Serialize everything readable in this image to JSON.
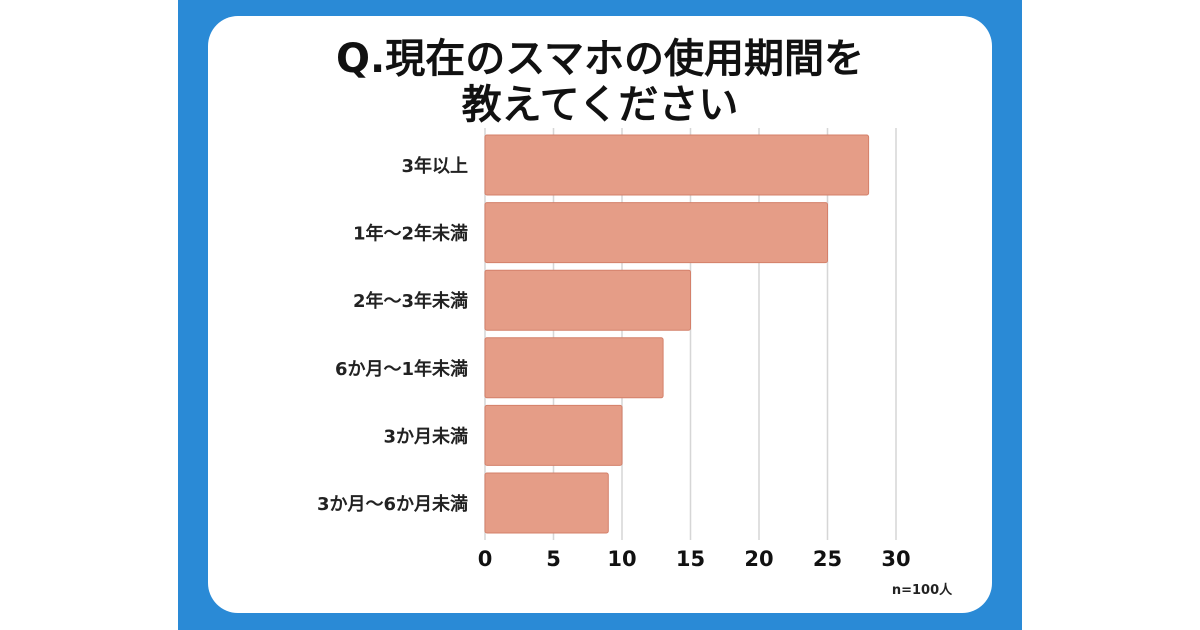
{
  "title": {
    "line1": "Q.現在のスマホの使用期間を",
    "line2": "教えてください"
  },
  "note": "n=100人",
  "colors": {
    "frame": "#2a8ad6",
    "bar": "#e59d87",
    "bar_stroke": "#d4806a",
    "grid": "#d6d6d6"
  },
  "chart_data": {
    "type": "bar",
    "orientation": "horizontal",
    "categories": [
      "3年以上",
      "1年〜2年未満",
      "2年〜3年未満",
      "6か月〜1年未満",
      "3か月未満",
      "3か月〜6か月未満"
    ],
    "values": [
      28,
      25,
      15,
      13,
      10,
      9
    ],
    "xlim": [
      0,
      30
    ],
    "xticks": [
      "0",
      "5",
      "10",
      "15",
      "20",
      "25",
      "30"
    ],
    "grid": true
  }
}
